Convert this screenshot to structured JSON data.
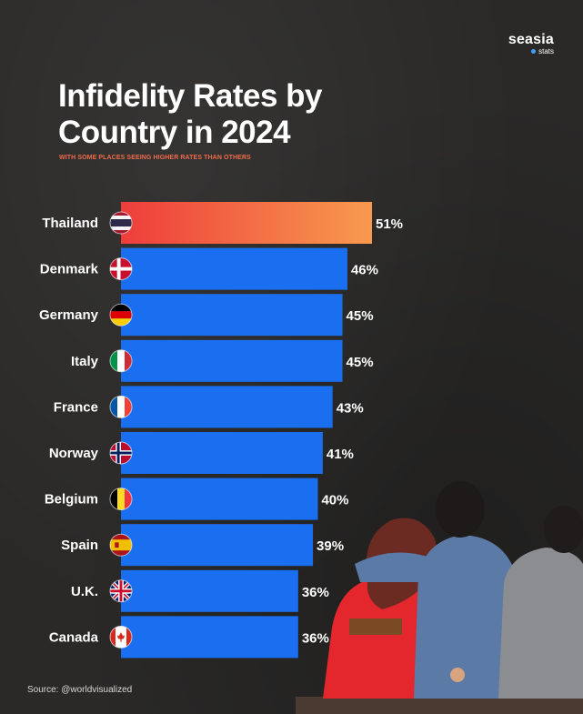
{
  "brand": {
    "name": "seasia",
    "sub": "stats"
  },
  "title_line1": "Infidelity Rates by",
  "title_line2": "Country in 2024",
  "subtitle": "WITH SOME PLACES SEEING HIGHER RATES THAN OTHERS",
  "source": "Source: @worldvisualized",
  "colors": {
    "highlight_start": "#ee3d3b",
    "highlight_end": "#f89a4e",
    "bar": "#1a6ff0",
    "background": "#2a2928"
  },
  "chart_data": {
    "type": "bar",
    "orientation": "horizontal",
    "title": "Infidelity Rates by Country in 2024",
    "subtitle": "WITH SOME PLACES SEEING HIGHER RATES THAN OTHERS",
    "categories": [
      "Thailand",
      "Denmark",
      "Germany",
      "Italy",
      "France",
      "Norway",
      "Belgium",
      "Spain",
      "U.K.",
      "Canada"
    ],
    "values": [
      51,
      46,
      45,
      45,
      43,
      41,
      40,
      39,
      36,
      36
    ],
    "value_labels": [
      "51%",
      "46%",
      "45%",
      "45%",
      "43%",
      "41%",
      "40%",
      "39%",
      "36%",
      "36%"
    ],
    "flags": [
      "thailand-flag-icon",
      "denmark-flag-icon",
      "germany-flag-icon",
      "italy-flag-icon",
      "france-flag-icon",
      "norway-flag-icon",
      "belgium-flag-icon",
      "spain-flag-icon",
      "uk-flag-icon",
      "canada-flag-icon"
    ],
    "highlighted": "Thailand",
    "xlabel": "",
    "ylabel": "",
    "grid": false
  }
}
